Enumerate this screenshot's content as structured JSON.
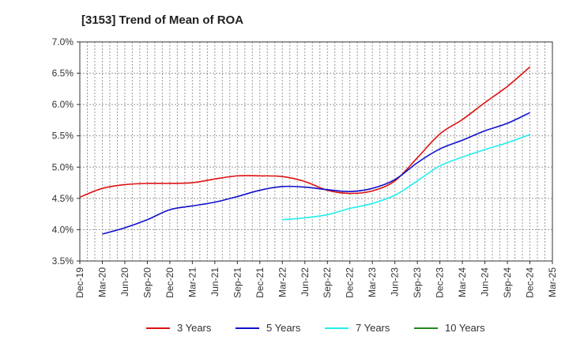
{
  "chart_data": {
    "type": "line",
    "title": "[3153]  Trend of Mean of ROA",
    "xlabel": "",
    "ylabel": "",
    "ylim": [
      3.5,
      7.0
    ],
    "y_ticks": [
      "3.5%",
      "4.0%",
      "4.5%",
      "5.0%",
      "5.5%",
      "6.0%",
      "6.5%",
      "7.0%"
    ],
    "categories": [
      "Dec-19",
      "Mar-20",
      "Jun-20",
      "Sep-20",
      "Dec-20",
      "Mar-21",
      "Jun-21",
      "Sep-21",
      "Dec-21",
      "Mar-22",
      "Jun-22",
      "Sep-22",
      "Dec-22",
      "Mar-23",
      "Jun-23",
      "Sep-23",
      "Dec-23",
      "Mar-24",
      "Jun-24",
      "Sep-24",
      "Dec-24",
      "Mar-25"
    ],
    "grid": true,
    "legend_position": "bottom",
    "series": [
      {
        "name": "3 Years",
        "color": "#dd1111",
        "values": [
          4.52,
          4.66,
          4.72,
          4.74,
          4.74,
          4.75,
          4.81,
          4.86,
          4.86,
          4.85,
          4.77,
          4.63,
          4.58,
          4.62,
          4.78,
          5.15,
          5.53,
          5.76,
          6.03,
          6.29,
          6.6,
          null
        ]
      },
      {
        "name": "5 Years",
        "color": "#1111cc",
        "values": [
          null,
          3.93,
          4.03,
          4.16,
          4.32,
          4.38,
          4.44,
          4.53,
          4.63,
          4.69,
          4.68,
          4.64,
          4.61,
          4.66,
          4.8,
          5.07,
          5.29,
          5.43,
          5.58,
          5.7,
          5.87,
          null
        ]
      },
      {
        "name": "7 Years",
        "color": "#22eeee",
        "values": [
          null,
          null,
          null,
          null,
          null,
          null,
          null,
          null,
          null,
          4.16,
          4.19,
          4.24,
          4.34,
          4.42,
          4.55,
          4.78,
          5.02,
          5.16,
          5.28,
          5.39,
          5.52,
          null
        ]
      },
      {
        "name": "10 Years",
        "color": "#228822",
        "values": [
          null,
          null,
          null,
          null,
          null,
          null,
          null,
          null,
          null,
          null,
          null,
          null,
          null,
          null,
          null,
          null,
          null,
          null,
          null,
          null,
          null,
          null
        ]
      }
    ]
  }
}
